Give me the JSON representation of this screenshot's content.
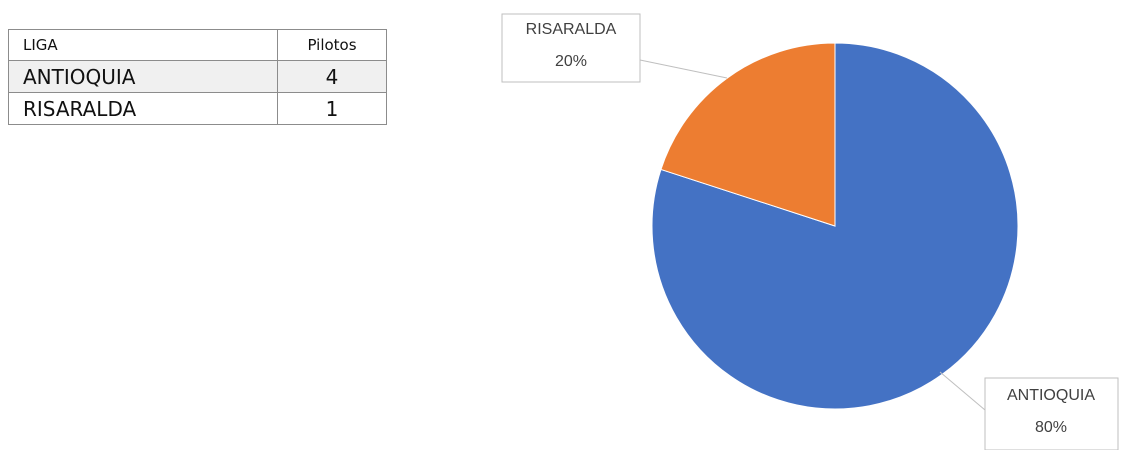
{
  "table": {
    "header": [
      "LIGA",
      "Pilotos"
    ],
    "rows": [
      [
        "ANTIOQUIA",
        4
      ],
      [
        "RISARALDA",
        1
      ]
    ]
  },
  "chart_data": {
    "type": "pie",
    "categories": [
      "ANTIOQUIA",
      "RISARALDA"
    ],
    "values": [
      80,
      20
    ],
    "value_labels": [
      "80%",
      "20%"
    ],
    "colors": [
      "#4472c4",
      "#ed7d31"
    ]
  }
}
